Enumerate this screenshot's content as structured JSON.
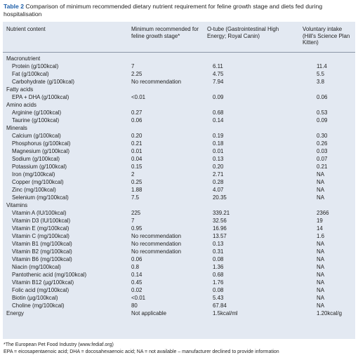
{
  "table_label": "Table 2",
  "caption": "Comparison of minimum recommended dietary nutrient requirement for feline growth stage and diets fed during hospitalisation",
  "table": {
    "headers": [
      "Nutrient content",
      "Minimum recommended for feline growth stage*",
      "O-tube (Gastrointestinal High Energy; Royal Canin)",
      "Voluntary intake (Hill's Science Plan Kitten)"
    ],
    "sections": [
      {
        "title": "Macronutrient",
        "rows": [
          [
            "Protein (g/100kcal)",
            "7",
            "6.11",
            "11.4"
          ],
          [
            "Fat (g/100kcal)",
            "2.25",
            "4.75",
            "5.5"
          ],
          [
            "Carbohydrate (g/100kcal)",
            "No recommendation",
            "7.94",
            "3.8"
          ]
        ]
      },
      {
        "title": "Fatty acids",
        "rows": [
          [
            "EPA + DHA (g/100kcal)",
            "<0.01",
            "0.09",
            "0.06"
          ]
        ]
      },
      {
        "title": "Amino acids",
        "rows": [
          [
            "Arginine (g/100kcal)",
            "0.27",
            "0.68",
            "0.53"
          ],
          [
            "Taurine (g/100kcal)",
            "0.06",
            "0.14",
            "0.09"
          ]
        ]
      },
      {
        "title": "Minerals",
        "rows": [
          [
            "Calcium (g/100kcal)",
            "0.20",
            "0.19",
            "0.30"
          ],
          [
            "Phosphorus (g/100kcal)",
            "0.21",
            "0.18",
            "0.26"
          ],
          [
            "Magnesium (g/100kcal)",
            "0.01",
            "0.01",
            "0.03"
          ],
          [
            "Sodium (g/100kcal)",
            "0.04",
            "0.13",
            "0.07"
          ],
          [
            "Potassium (g/100kcal)",
            "0.15",
            "0.20",
            "0.21"
          ],
          [
            "Iron (mg/100kcal)",
            "2",
            "2.71",
            "NA"
          ],
          [
            "Copper (mg/100kcal)",
            "0.25",
            "0.28",
            "NA"
          ],
          [
            "Zinc (mg/100kcal)",
            "1.88",
            "4.07",
            "NA"
          ],
          [
            "Selenium (mg/100kcal)",
            "7.5",
            "20.35",
            "NA"
          ]
        ]
      },
      {
        "title": "Vitamins",
        "rows": [
          [
            "Vitamin A (IU/100kcal)",
            "225",
            "339.21",
            "2366"
          ],
          [
            "Vitamin D3 (IU/100kcal)",
            "7",
            "32.56",
            "19"
          ],
          [
            "Vitamin E (mg/100kcal)",
            "0.95",
            "16.96",
            "14"
          ],
          [
            "Vitamin C (mg/100kcal)",
            "No recommendation",
            "13.57",
            "1.6"
          ],
          [
            "Vitamin B1 (mg/100kcal)",
            "No recommendation",
            "0.13",
            "NA"
          ],
          [
            "Vitamin B2 (mg/100kcal)",
            "No recommendation",
            "0.31",
            "NA"
          ],
          [
            "Vitamin B6 (mg/100kcal)",
            "0.06",
            "0.08",
            "NA"
          ],
          [
            "Niacin (mg/100kcal)",
            "0.8",
            "1.36",
            "NA"
          ],
          [
            "Pantothenic acid (mg/100kcal)",
            "0.14",
            "0.68",
            "NA"
          ],
          [
            "Vitamin B12 (µg/100kcal)",
            "0.45",
            "1.76",
            "NA"
          ],
          [
            "Folic acid (mg/100kcal)",
            "0.02",
            "0.08",
            "NA"
          ],
          [
            "Biotin (µg/100kcal)",
            "<0.01",
            "5.43",
            "NA"
          ],
          [
            "Choline (mg/100kcal)",
            "80",
            "67.84",
            "NA"
          ]
        ]
      }
    ],
    "energy_row": [
      "Energy",
      "Not applicable",
      "1.5kcal/ml",
      "1.20kcal/g"
    ]
  },
  "footnotes": [
    "*The European Pet Food Industry (www.fediaf.org)",
    "EPA = eicosapentaenoic acid; DHA = docosahexaenoic acid; NA = not available – manufacturer declined to provide information"
  ]
}
